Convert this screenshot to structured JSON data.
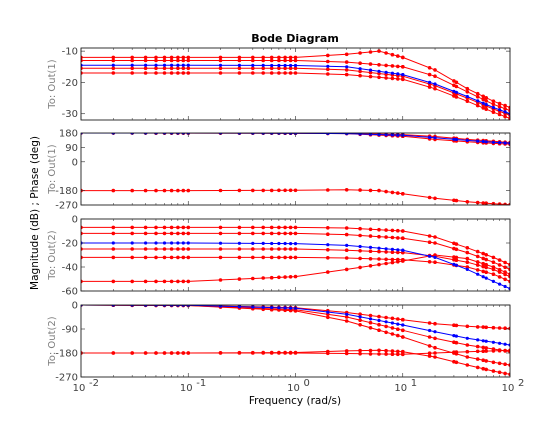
{
  "chart_data": {
    "type": "line",
    "title": "Bode Diagram",
    "xlabel": "Frequency  (rad/s)",
    "ylabel": "Magnitude (dB) ; Phase (deg)",
    "xscale": "log",
    "xlim": [
      0.01,
      100
    ],
    "x_ticks": [
      {
        "value": 0.01,
        "base": "10",
        "exp": "-2"
      },
      {
        "value": 0.1,
        "base": "10",
        "exp": "-1"
      },
      {
        "value": 1,
        "base": "10",
        "exp": "0"
      },
      {
        "value": 10,
        "base": "10",
        "exp": "1"
      },
      {
        "value": 100,
        "base": "10",
        "exp": "2"
      }
    ],
    "grid": false,
    "colors": {
      "nominal": "#0000ff",
      "samples": "#ff0000",
      "axes": "#000000",
      "labels": "#808080"
    },
    "panels": [
      {
        "id": "mag1",
        "ylabel": "To: Out(1)",
        "ylim": [
          -32,
          -9
        ],
        "yticks": [
          -30,
          -20,
          -10
        ],
        "ytick_labels": [
          "-30",
          "-20",
          "-10"
        ],
        "nominal": {
          "x": [
            0.01,
            0.1,
            1,
            3,
            10,
            20,
            40,
            70,
            100
          ],
          "y": [
            -14.5,
            -14.5,
            -14.6,
            -15,
            -17.5,
            -20.5,
            -24.5,
            -28,
            -30
          ]
        },
        "samples": [
          {
            "x": [
              0.01,
              1,
              3,
              6,
              10,
              20,
              40,
              70,
              100
            ],
            "y": [
              -12,
              -12,
              -11,
              -10,
              -12,
              -16,
              -22,
              -26,
              -28
            ]
          },
          {
            "x": [
              0.01,
              1,
              3,
              10,
              20,
              40,
              70,
              100
            ],
            "y": [
              -13,
              -13,
              -13.5,
              -15,
              -18,
              -23,
              -27,
              -29
            ]
          },
          {
            "x": [
              0.01,
              1,
              3,
              10,
              20,
              40,
              70,
              100
            ],
            "y": [
              -15.5,
              -15.5,
              -16,
              -18,
              -21,
              -25,
              -28.5,
              -30.5
            ]
          },
          {
            "x": [
              0.01,
              1,
              3,
              10,
              20,
              40,
              70,
              100
            ],
            "y": [
              -17,
              -17,
              -17.5,
              -19,
              -22,
              -26,
              -29.5,
              -31.5
            ]
          }
        ]
      },
      {
        "id": "phase1",
        "ylabel": "To: Out(1)",
        "ylim": [
          -270,
          180
        ],
        "yticks": [
          -270,
          -180,
          0,
          90,
          180
        ],
        "ytick_labels": [
          "-270",
          "-180",
          "0",
          "90",
          "180"
        ],
        "nominal": {
          "x": [
            0.01,
            0.1,
            1,
            3,
            10,
            20,
            40,
            70,
            100
          ],
          "y": [
            180,
            180,
            179,
            176,
            166,
            150,
            134,
            122,
            116
          ]
        },
        "samples": [
          {
            "x": [
              0.01,
              1,
              3,
              10,
              20,
              40,
              70,
              100
            ],
            "y": [
              180,
              179,
              176,
              160,
              140,
              125,
              115,
              110
            ]
          },
          {
            "x": [
              0.01,
              1,
              3,
              10,
              20,
              40,
              70,
              100
            ],
            "y": [
              180,
              179,
              178,
              170,
              158,
              140,
              128,
              120
            ]
          },
          {
            "x": [
              0.01,
              0.1,
              1,
              3,
              6,
              10,
              20,
              40,
              70,
              100
            ],
            "y": [
              -180,
              -180,
              -178,
              -175,
              -180,
              -200,
              -228,
              -250,
              -262,
              -268
            ]
          }
        ]
      },
      {
        "id": "mag2",
        "ylabel": "To: Out(2)",
        "ylim": [
          -60,
          0
        ],
        "yticks": [
          -60,
          -40,
          -20,
          0
        ],
        "ytick_labels": [
          "-60",
          "-40",
          "-20",
          "0"
        ],
        "nominal": {
          "x": [
            0.01,
            0.1,
            1,
            3,
            10,
            20,
            40,
            70,
            100
          ],
          "y": [
            -20,
            -20,
            -20.5,
            -22,
            -26,
            -32,
            -42,
            -52,
            -58
          ]
        },
        "samples": [
          {
            "x": [
              0.01,
              1,
              3,
              10,
              20,
              40,
              70,
              100
            ],
            "y": [
              -7,
              -7,
              -7.5,
              -10,
              -15,
              -24,
              -32,
              -38
            ]
          },
          {
            "x": [
              0.01,
              1,
              3,
              10,
              20,
              40,
              70,
              100
            ],
            "y": [
              -12,
              -12,
              -13,
              -16,
              -20,
              -28,
              -36,
              -42
            ]
          },
          {
            "x": [
              0.01,
              1,
              3,
              10,
              20,
              40,
              70,
              100
            ],
            "y": [
              -25,
              -25,
              -26,
              -28,
              -31,
              -36,
              -42,
              -48
            ]
          },
          {
            "x": [
              0.01,
              1,
              3,
              10,
              20,
              40,
              70,
              100
            ],
            "y": [
              -32,
              -32,
              -32.5,
              -34,
              -36,
              -40,
              -46,
              -52
            ]
          },
          {
            "x": [
              0.01,
              0.1,
              1,
              3,
              10,
              20,
              40,
              70,
              100
            ],
            "y": [
              -52,
              -52,
              -48,
              -42,
              -35,
              -30,
              -33,
              -40,
              -46
            ]
          }
        ]
      },
      {
        "id": "phase2",
        "ylabel": "To: Out(2)",
        "ylim": [
          -270,
          0
        ],
        "yticks": [
          -270,
          -180,
          -90,
          0
        ],
        "ytick_labels": [
          "-270",
          "-180",
          "-90",
          "0"
        ],
        "nominal": {
          "x": [
            0.01,
            0.1,
            1,
            3,
            10,
            20,
            40,
            70,
            100
          ],
          "y": [
            0,
            -1,
            -12,
            -35,
            -75,
            -100,
            -125,
            -140,
            -150
          ]
        },
        "samples": [
          {
            "x": [
              0.01,
              0.1,
              1,
              3,
              10,
              20,
              40,
              70,
              100
            ],
            "y": [
              0,
              -1,
              -10,
              -28,
              -55,
              -70,
              -80,
              -85,
              -88
            ]
          },
          {
            "x": [
              0.01,
              0.1,
              1,
              3,
              10,
              20,
              40,
              70,
              100
            ],
            "y": [
              0,
              -2,
              -18,
              -45,
              -95,
              -125,
              -150,
              -165,
              -175
            ]
          },
          {
            "x": [
              0.01,
              0.1,
              1,
              3,
              10,
              20,
              40,
              70,
              100
            ],
            "y": [
              0,
              -2,
              -22,
              -60,
              -120,
              -160,
              -195,
              -215,
              -225
            ]
          },
          {
            "x": [
              0.01,
              0.1,
              1,
              3,
              6,
              10,
              20,
              40,
              70,
              100
            ],
            "y": [
              -180,
              -180,
              -178,
              -172,
              -170,
              -175,
              -195,
              -225,
              -248,
              -260
            ]
          },
          {
            "x": [
              0.01,
              0.1,
              1,
              3,
              10,
              20,
              40,
              70,
              100
            ],
            "y": [
              -180,
              -180,
              -180,
              -182,
              -185,
              -180,
              -175,
              -172,
              -170
            ]
          }
        ]
      }
    ]
  }
}
